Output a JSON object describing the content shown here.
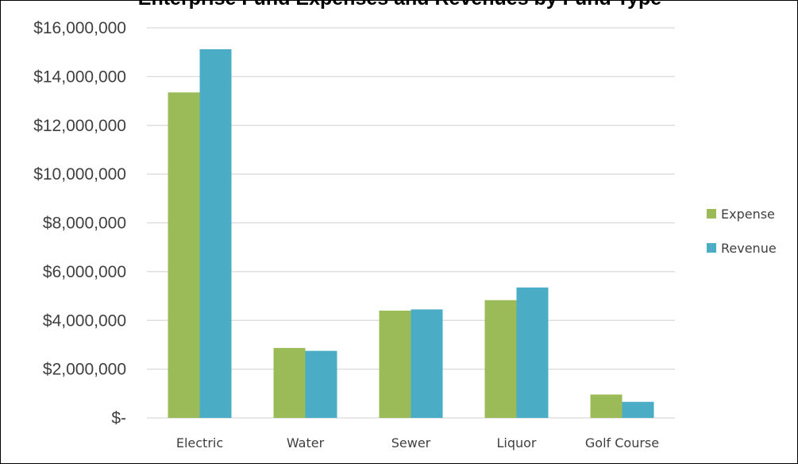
{
  "chart_data": {
    "type": "bar",
    "title": "Enterprise Fund Expenses and Revenues by Fund Type",
    "categories": [
      "Electric",
      "Water",
      "Sewer",
      "Liquor",
      "Golf Course"
    ],
    "series": [
      {
        "name": "Expense",
        "color": "#9bbb59",
        "values": [
          13350000,
          2870000,
          4400000,
          4830000,
          960000
        ]
      },
      {
        "name": "Revenue",
        "color": "#4bacc6",
        "values": [
          15120000,
          2750000,
          4450000,
          5350000,
          660000
        ]
      }
    ],
    "ylim": [
      0,
      16000000
    ],
    "yticks": [
      0,
      2000000,
      4000000,
      6000000,
      8000000,
      10000000,
      12000000,
      14000000,
      16000000
    ],
    "ytick_labels": [
      "$-",
      "$2,000,000",
      "$4,000,000",
      "$6,000,000",
      "$8,000,000",
      "$10,000,000",
      "$12,000,000",
      "$14,000,000",
      "$16,000,000"
    ],
    "grid": true,
    "legend_position": "right",
    "xlabel": "",
    "ylabel": ""
  }
}
